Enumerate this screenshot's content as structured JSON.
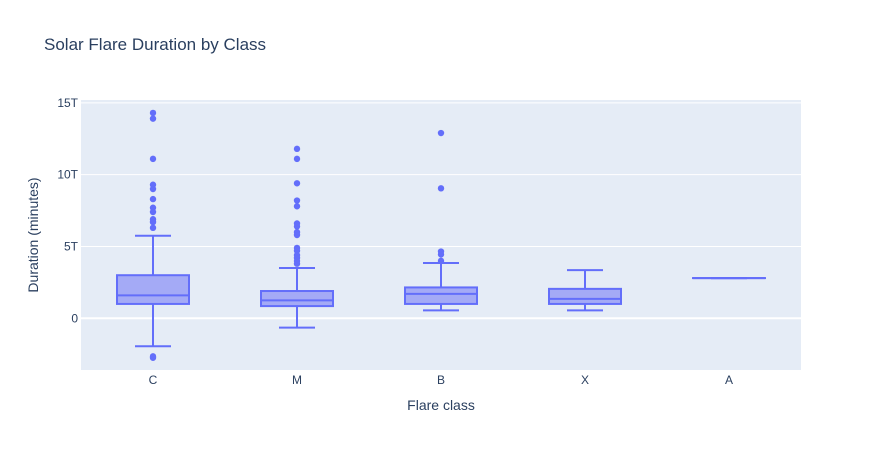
{
  "chart_data": {
    "type": "box",
    "title": "Solar Flare Duration by Class",
    "xlabel": "Flare class",
    "ylabel": "Duration (minutes)",
    "categories": [
      "C",
      "M",
      "B",
      "X",
      "A"
    ],
    "ylim": [
      -3.6,
      15.2
    ],
    "yticks": [
      {
        "value": 0,
        "label": "0"
      },
      {
        "value": 5,
        "label": "5T"
      },
      {
        "value": 10,
        "label": "10T"
      },
      {
        "value": 15,
        "label": "15T"
      }
    ],
    "grid": true,
    "colors": {
      "plot_bg": "#e5ecf6",
      "grid": "#ffffff",
      "box_line": "#636efa",
      "box_fill": "#a4aaf6",
      "text": "#2a3f5f"
    },
    "boxes": [
      {
        "category": "C",
        "lower_fence": -1.95,
        "q1": 1.0,
        "median": 1.6,
        "q3": 3.0,
        "upper_fence": 5.75,
        "outliers": [
          14.3,
          13.9,
          11.1,
          9.3,
          9.0,
          8.3,
          7.7,
          7.4,
          6.9,
          6.7,
          6.3,
          -2.65,
          -2.75
        ]
      },
      {
        "category": "M",
        "lower_fence": -0.65,
        "q1": 0.85,
        "median": 1.25,
        "q3": 1.9,
        "upper_fence": 3.5,
        "outliers": [
          11.8,
          11.1,
          9.4,
          8.2,
          7.8,
          6.6,
          6.4,
          6.0,
          5.8,
          4.9,
          4.7,
          4.4,
          4.2,
          4.0,
          3.8
        ]
      },
      {
        "category": "B",
        "lower_fence": 0.55,
        "q1": 1.0,
        "median": 1.7,
        "q3": 2.15,
        "upper_fence": 3.85,
        "outliers": [
          12.9,
          9.05,
          4.65,
          4.45,
          4.0
        ]
      },
      {
        "category": "X",
        "lower_fence": 0.55,
        "q1": 1.0,
        "median": 1.35,
        "q3": 2.05,
        "upper_fence": 3.35,
        "outliers": []
      },
      {
        "category": "A",
        "lower_fence": 2.8,
        "q1": 2.8,
        "median": 2.8,
        "q3": 2.8,
        "upper_fence": 2.8,
        "outliers": []
      }
    ]
  }
}
